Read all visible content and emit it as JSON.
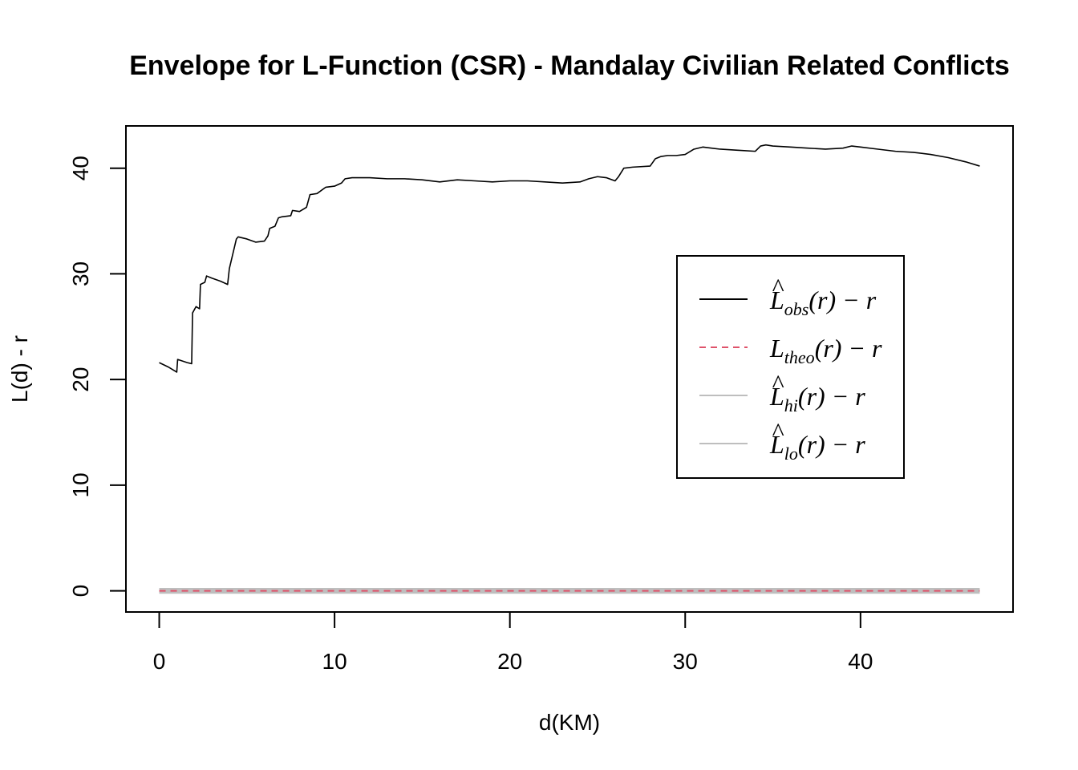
{
  "chart_data": {
    "type": "line",
    "title": "Envelope for L-Function (CSR) - Mandalay Civilian Related Conflicts",
    "xlabel": "d(KM)",
    "ylabel": "L(d) - r",
    "xlim": [
      -1.9,
      48.7
    ],
    "ylim": [
      -2,
      44
    ],
    "x_ticks": [
      0,
      10,
      20,
      30,
      40
    ],
    "y_ticks": [
      0,
      10,
      20,
      30,
      40
    ],
    "legend_position": "right",
    "series": [
      {
        "name": "obs",
        "legend": {
          "main": "L",
          "hat": "^",
          "sub": "obs",
          "rest": "(r) − r"
        },
        "color": "#000000",
        "style": "solid",
        "x": [
          0,
          0.5,
          1.0,
          1.05,
          1.6,
          1.85,
          1.9,
          2.1,
          2.3,
          2.35,
          2.6,
          2.7,
          3.0,
          3.5,
          3.9,
          4.0,
          4.4,
          4.5,
          5.0,
          5.5,
          6.0,
          6.2,
          6.3,
          6.6,
          6.8,
          7.0,
          7.5,
          7.6,
          8.0,
          8.4,
          8.6,
          9.0,
          9.5,
          10.0,
          10.4,
          10.6,
          11.0,
          12.0,
          13.0,
          14.0,
          15.0,
          16.0,
          17.0,
          18.0,
          19.0,
          20.0,
          21.0,
          22.0,
          23.0,
          24.0,
          24.5,
          25.0,
          25.5,
          26.0,
          26.2,
          26.5,
          27.0,
          28.0,
          28.3,
          28.6,
          29.0,
          29.5,
          30.0,
          30.5,
          31.0,
          32.0,
          33.0,
          34.0,
          34.3,
          34.6,
          35.0,
          36.0,
          37.0,
          38.0,
          39.0,
          39.5,
          40.0,
          41.0,
          42.0,
          43.0,
          44.0,
          45.0,
          46.0,
          46.8
        ],
        "values": [
          21.6,
          21.2,
          20.7,
          21.9,
          21.6,
          21.5,
          26.3,
          26.9,
          26.7,
          29.0,
          29.2,
          29.8,
          29.6,
          29.3,
          29.0,
          30.5,
          33.3,
          33.5,
          33.3,
          33.0,
          33.1,
          33.6,
          34.3,
          34.5,
          35.3,
          35.4,
          35.5,
          36.0,
          35.9,
          36.3,
          37.5,
          37.6,
          38.2,
          38.3,
          38.6,
          39.0,
          39.1,
          39.1,
          39.0,
          39.0,
          38.9,
          38.7,
          38.9,
          38.8,
          38.7,
          38.8,
          38.8,
          38.7,
          38.6,
          38.7,
          39.0,
          39.2,
          39.1,
          38.8,
          39.2,
          40.0,
          40.1,
          40.2,
          40.9,
          41.1,
          41.2,
          41.2,
          41.3,
          41.8,
          42.0,
          41.8,
          41.7,
          41.6,
          42.1,
          42.2,
          42.1,
          42.0,
          41.9,
          41.8,
          41.9,
          42.1,
          42.0,
          41.8,
          41.6,
          41.5,
          41.3,
          41.0,
          40.6,
          40.2
        ]
      },
      {
        "name": "theo",
        "legend": {
          "main": "L",
          "hat": "",
          "sub": "theo",
          "rest": "(r) − r"
        },
        "color": "#DF536B",
        "style": "dashed",
        "x": [
          0,
          46.8
        ],
        "values": [
          0,
          0
        ]
      },
      {
        "name": "hi",
        "legend": {
          "main": "L",
          "hat": "^",
          "sub": "hi",
          "rest": "(r) − r"
        },
        "color": "#BEBEBE",
        "style": "solid",
        "x": [
          0,
          46.8
        ],
        "values": [
          0.2,
          0.2
        ]
      },
      {
        "name": "lo",
        "legend": {
          "main": "L",
          "hat": "^",
          "sub": "lo",
          "rest": "(r) − r"
        },
        "color": "#BEBEBE",
        "style": "solid",
        "x": [
          0,
          46.8
        ],
        "values": [
          -0.2,
          -0.2
        ]
      }
    ]
  }
}
